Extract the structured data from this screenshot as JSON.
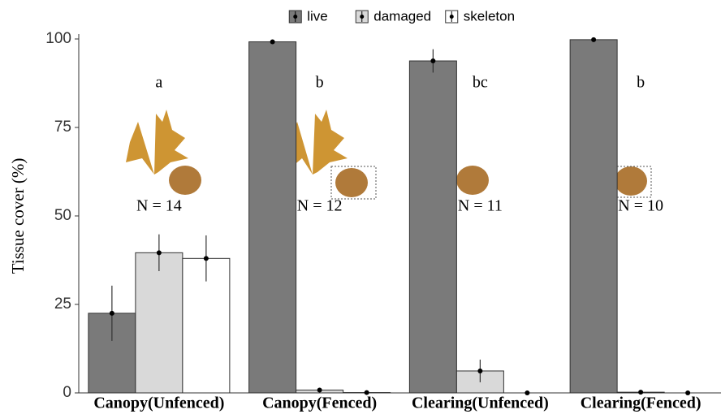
{
  "chart_data": {
    "type": "bar",
    "y_label": "Tissue cover (%)",
    "categories": [
      "Canopy(Unfenced)",
      "Canopy(Fenced)",
      "Clearing(Unfenced)",
      "Clearing(Fenced)"
    ],
    "series": [
      {
        "name": "live",
        "color": "#7a7a7a",
        "values": [
          22.5,
          99.2,
          93.8,
          99.8
        ],
        "errors": [
          7.8,
          0.3,
          3.3,
          0.2
        ]
      },
      {
        "name": "damaged",
        "color": "#d9d9d9",
        "values": [
          39.6,
          0.8,
          6.2,
          0.2
        ],
        "errors": [
          5.2,
          0.3,
          3.2,
          0.1
        ]
      },
      {
        "name": "skeleton",
        "color": "#ffffff",
        "values": [
          38,
          0.1,
          0,
          0
        ],
        "errors": [
          6.5,
          0.1,
          0,
          0
        ]
      }
    ],
    "letters": [
      "a",
      "b",
      "bc",
      "b"
    ],
    "n_labels": [
      "N = 14",
      "N = 12",
      "N = 11",
      "N = 10"
    ],
    "ylim": [
      0,
      100
    ],
    "yticks": [
      0,
      25,
      50,
      75,
      100
    ],
    "legend": "top"
  }
}
